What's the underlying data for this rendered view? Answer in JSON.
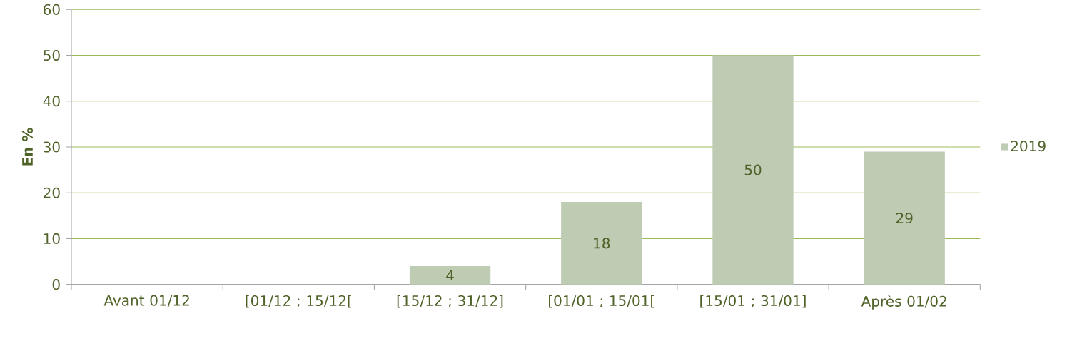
{
  "chart_data": {
    "type": "bar",
    "ylabel": "En %",
    "categories": [
      "Avant 01/12",
      "[01/12 ; 15/12[",
      "[15/12 ; 31/12]",
      "[01/01 ; 15/01[",
      "[15/01 ; 31/01]",
      "Après 01/02"
    ],
    "series": [
      {
        "name": "2019",
        "color": "#bfccb4",
        "values": [
          null,
          null,
          4,
          18,
          50,
          29
        ]
      }
    ],
    "ylim": [
      0,
      60
    ],
    "yticks": [
      0,
      10,
      20,
      30,
      40,
      50,
      60
    ],
    "grid": "y",
    "legend": "right",
    "data_labels": true
  }
}
